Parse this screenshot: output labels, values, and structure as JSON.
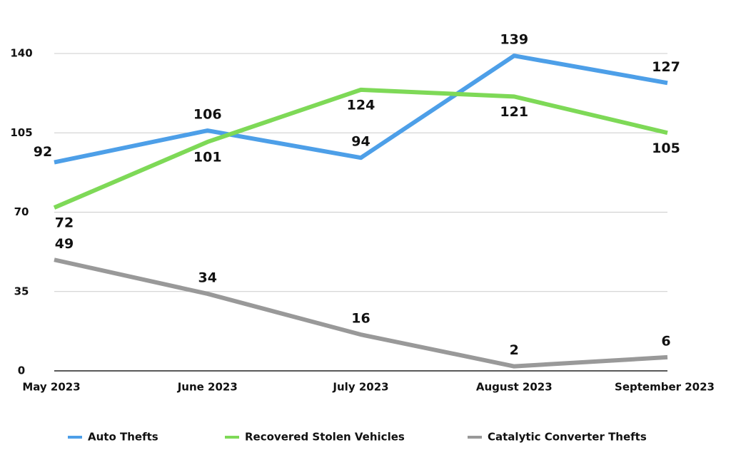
{
  "chart_data": {
    "type": "line",
    "categories": [
      "May 2023",
      "June 2023",
      "July 2023",
      "August 2023",
      "September 2023"
    ],
    "series": [
      {
        "name": "Auto Thefts",
        "color": "#4d9fe8",
        "values": [
          92,
          106,
          94,
          139,
          127
        ]
      },
      {
        "name": "Recovered Stolen Vehicles",
        "color": "#7ed957",
        "values": [
          72,
          101,
          124,
          121,
          105
        ]
      },
      {
        "name": "Catalytic Converter Thefts",
        "color": "#999999",
        "values": [
          49,
          34,
          16,
          2,
          6
        ]
      }
    ],
    "ylim": [
      0,
      140
    ],
    "yticks": [
      0,
      35,
      70,
      105,
      140
    ],
    "grid": true,
    "legend": "bottom"
  }
}
